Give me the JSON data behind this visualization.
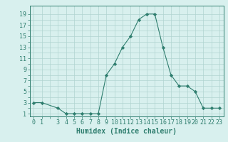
{
  "x": [
    0,
    1,
    3,
    4,
    5,
    6,
    7,
    8,
    9,
    10,
    11,
    12,
    13,
    14,
    15,
    16,
    17,
    18,
    19,
    20,
    21,
    22,
    23
  ],
  "y": [
    3,
    3,
    2,
    1,
    1,
    1,
    1,
    1,
    8,
    10,
    13,
    15,
    18,
    19,
    19,
    13,
    8,
    6,
    6,
    5,
    2,
    2,
    2
  ],
  "line_color": "#2e7d6e",
  "marker": "D",
  "marker_size": 2.2,
  "bg_color": "#d8f0ee",
  "grid_color": "#b0d4d0",
  "xlabel": "Humidex (Indice chaleur)",
  "xlabel_fontsize": 7,
  "ylim": [
    0.5,
    20.5
  ],
  "xlim": [
    -0.5,
    23.5
  ],
  "tick_fontsize": 6
}
